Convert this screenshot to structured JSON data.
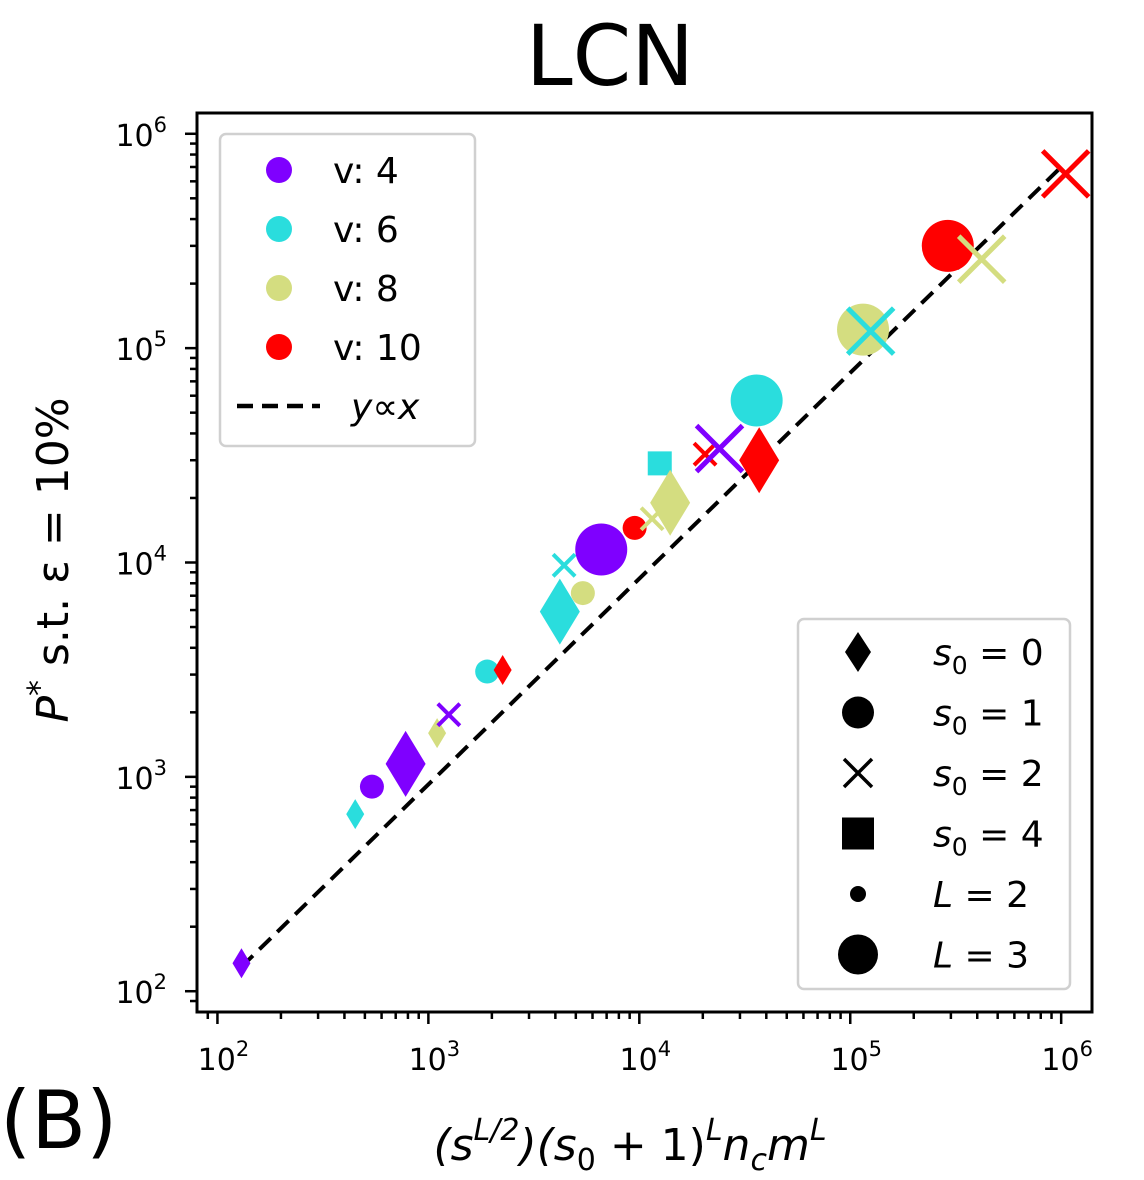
{
  "chart_data": {
    "type": "scatter",
    "title": "LCN",
    "panel_label": "(B)",
    "xlabel": {
      "pre": "(s",
      "sup1": "L/2",
      "mid": ")(s",
      "sub1": "0",
      "mid2": " + 1)",
      "sup2": "L",
      "mid3": "n",
      "sub2": "c",
      "mid4": "m",
      "sup3": "L"
    },
    "ylabel": {
      "pre": "P",
      "sup": "*",
      "post": " s.t. ε = 10%"
    },
    "x_scale": "log",
    "y_scale": "log",
    "xlim": [
      80,
      1400000
    ],
    "ylim": [
      80,
      1250000
    ],
    "x_ticks": [
      {
        "value": 100,
        "base": "10",
        "exp": "2"
      },
      {
        "value": 1000,
        "base": "10",
        "exp": "3"
      },
      {
        "value": 10000,
        "base": "10",
        "exp": "4"
      },
      {
        "value": 100000,
        "base": "10",
        "exp": "5"
      },
      {
        "value": 1000000,
        "base": "10",
        "exp": "6"
      }
    ],
    "y_ticks": [
      {
        "value": 100,
        "base": "10",
        "exp": "2"
      },
      {
        "value": 1000,
        "base": "10",
        "exp": "3"
      },
      {
        "value": 10000,
        "base": "10",
        "exp": "4"
      },
      {
        "value": 100000,
        "base": "10",
        "exp": "5"
      },
      {
        "value": 1000000,
        "base": "10",
        "exp": "6"
      }
    ],
    "colors": {
      "v4": "#7f00ff",
      "v6": "#2adddd",
      "v8": "#d4dd80",
      "v10": "#ff0000"
    },
    "points": [
      {
        "v": 4,
        "s0": 0,
        "L": 2,
        "x": 130,
        "y": 135
      },
      {
        "v": 4,
        "s0": 1,
        "L": 2,
        "x": 540,
        "y": 900
      },
      {
        "v": 4,
        "s0": 0,
        "L": 3,
        "x": 780,
        "y": 1150
      },
      {
        "v": 4,
        "s0": 2,
        "L": 2,
        "x": 1250,
        "y": 1950
      },
      {
        "v": 4,
        "s0": 1,
        "L": 3,
        "x": 6600,
        "y": 11500
      },
      {
        "v": 4,
        "s0": 2,
        "L": 3,
        "x": 24000,
        "y": 34000
      },
      {
        "v": 6,
        "s0": 0,
        "L": 2,
        "x": 450,
        "y": 670
      },
      {
        "v": 6,
        "s0": 1,
        "L": 2,
        "x": 1900,
        "y": 3100
      },
      {
        "v": 6,
        "s0": 0,
        "L": 3,
        "x": 4200,
        "y": 5900
      },
      {
        "v": 6,
        "s0": 2,
        "L": 2,
        "x": 4400,
        "y": 9700
      },
      {
        "v": 6,
        "s0": 4,
        "L": 2,
        "x": 12500,
        "y": 29000
      },
      {
        "v": 6,
        "s0": 1,
        "L": 3,
        "x": 36000,
        "y": 57000
      },
      {
        "v": 6,
        "s0": 2,
        "L": 3,
        "x": 125000,
        "y": 120000
      },
      {
        "v": 8,
        "s0": 0,
        "L": 2,
        "x": 1100,
        "y": 1600
      },
      {
        "v": 8,
        "s0": 1,
        "L": 2,
        "x": 5400,
        "y": 7200
      },
      {
        "v": 8,
        "s0": 2,
        "L": 2,
        "x": 11500,
        "y": 16000
      },
      {
        "v": 8,
        "s0": 0,
        "L": 3,
        "x": 14000,
        "y": 19000
      },
      {
        "v": 8,
        "s0": 1,
        "L": 3,
        "x": 115000,
        "y": 122000
      },
      {
        "v": 8,
        "s0": 2,
        "L": 3,
        "x": 420000,
        "y": 260000
      },
      {
        "v": 10,
        "s0": 0,
        "L": 2,
        "x": 2250,
        "y": 3150
      },
      {
        "v": 10,
        "s0": 1,
        "L": 2,
        "x": 9500,
        "y": 14500
      },
      {
        "v": 10,
        "s0": 2,
        "L": 2,
        "x": 20500,
        "y": 32000
      },
      {
        "v": 10,
        "s0": 0,
        "L": 3,
        "x": 37000,
        "y": 30000
      },
      {
        "v": 10,
        "s0": 1,
        "L": 3,
        "x": 290000,
        "y": 300000
      },
      {
        "v": 10,
        "s0": 2,
        "L": 3,
        "x": 1050000,
        "y": 650000
      }
    ],
    "fit_line": {
      "label": "y ∝ x",
      "from": [
        130,
        130
      ],
      "to": [
        1000000,
        700000
      ],
      "style": "dashed"
    },
    "legend_color": {
      "position": "top-left",
      "entries": [
        {
          "label": "v: 4",
          "color_key": "v4"
        },
        {
          "label": "v: 6",
          "color_key": "v6"
        },
        {
          "label": "v: 8",
          "color_key": "v8"
        },
        {
          "label": "v: 10",
          "color_key": "v10"
        }
      ],
      "fit_label": {
        "y": "y",
        "sym": "∝",
        "x": "x"
      }
    },
    "legend_marker": {
      "position": "bottom-right",
      "entries": [
        {
          "marker": "diamond",
          "var": "s",
          "sub": "0",
          "rest": " = 0"
        },
        {
          "marker": "circle",
          "var": "s",
          "sub": "0",
          "rest": " = 1"
        },
        {
          "marker": "x",
          "var": "s",
          "sub": "0",
          "rest": " = 2"
        },
        {
          "marker": "square",
          "var": "s",
          "sub": "0",
          "rest": " = 4"
        },
        {
          "marker": "small-dot",
          "var": "L",
          "sub": "",
          "rest": " = 2"
        },
        {
          "marker": "big-dot",
          "var": "L",
          "sub": "",
          "rest": " = 3"
        }
      ]
    }
  }
}
